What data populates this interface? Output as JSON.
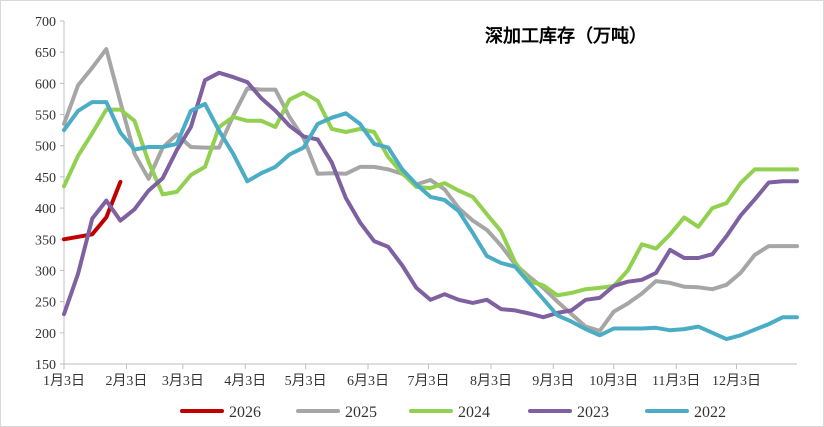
{
  "chart_data": {
    "type": "line",
    "title": "深加工库存（万吨）",
    "xlabel": "",
    "ylabel": "",
    "ylim": [
      150,
      700
    ],
    "yticks": [
      150,
      200,
      250,
      300,
      350,
      400,
      450,
      500,
      550,
      600,
      650,
      700
    ],
    "xlim": [
      0,
      52
    ],
    "xticks": [
      {
        "week": 0,
        "label": "1月3日"
      },
      {
        "week": 4.43,
        "label": "2月3日"
      },
      {
        "week": 8.43,
        "label": "3月3日"
      },
      {
        "week": 12.86,
        "label": "4月3日"
      },
      {
        "week": 17.14,
        "label": "5月3日"
      },
      {
        "week": 21.57,
        "label": "6月3日"
      },
      {
        "week": 25.86,
        "label": "7月3日"
      },
      {
        "week": 30.29,
        "label": "8月3日"
      },
      {
        "week": 34.71,
        "label": "9月3日"
      },
      {
        "week": 39,
        "label": "10月3日"
      },
      {
        "week": 43.43,
        "label": "11月3日"
      },
      {
        "week": 47.71,
        "label": "12月3日"
      }
    ],
    "legend_position": "bottom",
    "series": [
      {
        "name": "2026",
        "color": "#c00000",
        "x": [
          0,
          2,
          3,
          4
        ],
        "values": [
          350,
          358,
          385,
          442
        ]
      },
      {
        "name": "2025",
        "color": "#a6a6a6",
        "x": [
          0,
          1,
          2,
          3,
          4,
          5,
          6,
          7,
          8,
          9,
          10,
          11,
          12,
          13,
          14,
          15,
          16,
          17,
          18,
          19,
          20,
          21,
          22,
          23,
          24,
          25,
          26,
          27,
          28,
          29,
          30,
          31,
          32,
          33,
          34,
          35,
          36,
          37,
          38,
          39,
          40,
          41,
          42,
          43,
          44,
          45,
          46,
          47,
          48,
          49,
          50,
          51,
          52
        ],
        "values": [
          535,
          597,
          625,
          655,
          570,
          487,
          447,
          497,
          518,
          498,
          497,
          497,
          548,
          592,
          590,
          590,
          546,
          512,
          455,
          456,
          455,
          466,
          466,
          462,
          455,
          438,
          445,
          430,
          400,
          380,
          365,
          340,
          310,
          290,
          272,
          250,
          230,
          210,
          203,
          234,
          247,
          263,
          283,
          280,
          274,
          273,
          270,
          277,
          296,
          325,
          339,
          339,
          339
        ]
      },
      {
        "name": "2024",
        "color": "#92d050",
        "x": [
          0,
          1,
          2,
          3,
          4,
          5,
          6,
          7,
          8,
          9,
          10,
          11,
          12,
          13,
          14,
          15,
          16,
          17,
          18,
          19,
          20,
          21,
          22,
          23,
          24,
          25,
          26,
          27,
          28,
          29,
          30,
          31,
          32,
          33,
          34,
          35,
          36,
          37,
          38,
          39,
          40,
          41,
          42,
          43,
          44,
          45,
          46,
          47,
          48,
          49,
          50,
          51,
          52
        ],
        "values": [
          435,
          484,
          520,
          558,
          558,
          540,
          474,
          422,
          426,
          453,
          466,
          530,
          546,
          540,
          540,
          530,
          574,
          585,
          572,
          527,
          522,
          527,
          522,
          482,
          456,
          434,
          432,
          440,
          428,
          418,
          390,
          363,
          313,
          283,
          276,
          260,
          264,
          270,
          272,
          275,
          300,
          342,
          335,
          358,
          385,
          370,
          400,
          408,
          440,
          462,
          462,
          462,
          462
        ]
      },
      {
        "name": "2023",
        "color": "#7f60a0",
        "x": [
          0,
          1,
          2,
          3,
          4,
          5,
          6,
          7,
          8,
          9,
          10,
          11,
          12,
          13,
          14,
          15,
          16,
          17,
          18,
          19,
          20,
          21,
          22,
          23,
          24,
          25,
          26,
          27,
          28,
          29,
          30,
          31,
          32,
          33,
          34,
          35,
          36,
          37,
          38,
          39,
          40,
          41,
          42,
          43,
          44,
          45,
          46,
          47,
          48,
          49,
          50,
          51,
          52
        ],
        "values": [
          230,
          295,
          383,
          412,
          380,
          398,
          428,
          448,
          493,
          530,
          605,
          617,
          610,
          602,
          576,
          556,
          532,
          515,
          510,
          473,
          416,
          377,
          347,
          338,
          308,
          272,
          253,
          262,
          253,
          248,
          253,
          238,
          236,
          231,
          225,
          232,
          236,
          253,
          256,
          275,
          282,
          285,
          296,
          333,
          320,
          320,
          326,
          355,
          388,
          414,
          441,
          443,
          443
        ]
      },
      {
        "name": "2022",
        "color": "#4bacc6",
        "x": [
          0,
          1,
          2,
          3,
          4,
          5,
          6,
          7,
          8,
          9,
          10,
          11,
          12,
          13,
          14,
          15,
          16,
          17,
          18,
          19,
          20,
          21,
          22,
          23,
          24,
          25,
          26,
          27,
          28,
          29,
          30,
          31,
          32,
          33,
          34,
          35,
          36,
          37,
          38,
          39,
          40,
          41,
          42,
          43,
          44,
          45,
          46,
          47,
          48,
          49,
          50,
          51,
          52
        ],
        "values": [
          525,
          556,
          570,
          570,
          521,
          494,
          498,
          498,
          503,
          556,
          567,
          524,
          487,
          443,
          456,
          466,
          486,
          497,
          535,
          545,
          552,
          535,
          503,
          497,
          462,
          438,
          418,
          413,
          395,
          360,
          323,
          312,
          306,
          280,
          254,
          228,
          218,
          206,
          196,
          207,
          207,
          207,
          208,
          204,
          206,
          210,
          200,
          190,
          196,
          205,
          214,
          225,
          225
        ]
      }
    ]
  }
}
